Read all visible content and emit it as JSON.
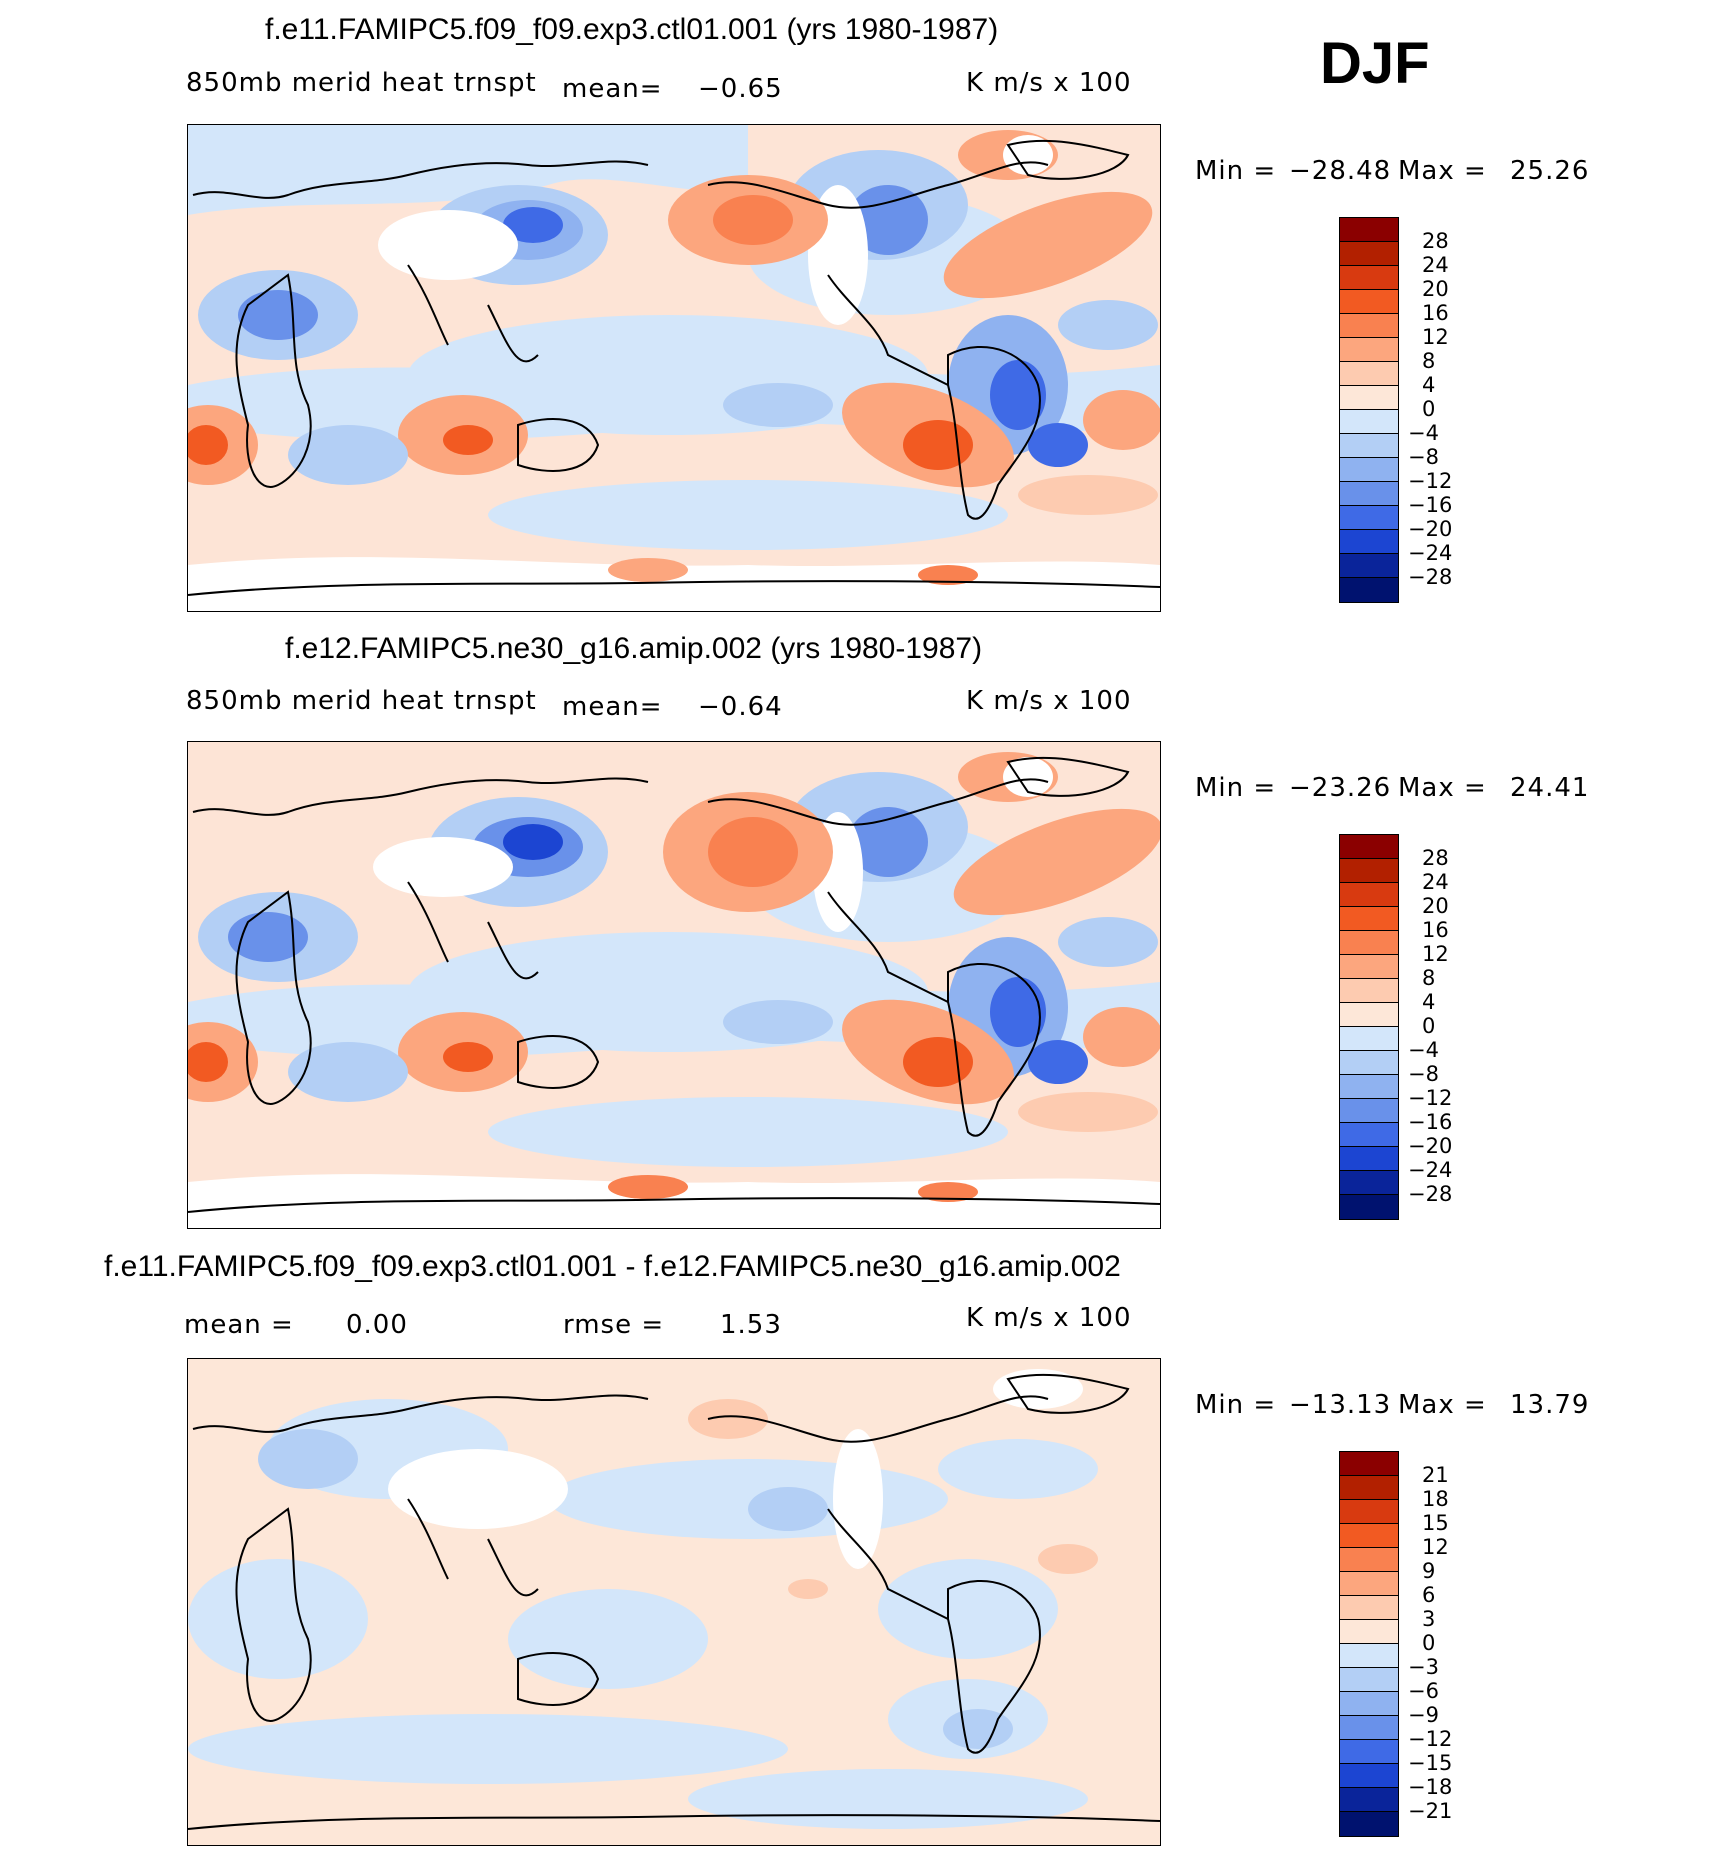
{
  "season": "DJF",
  "panels": [
    {
      "title": "f.e11.FAMIPC5.f09_f09.exp3.ctl01.001 (yrs 1980-1987)",
      "variable": "850mb merid heat trnspt",
      "mean_label": "mean=",
      "mean_value": "-0.65",
      "units": "K m/s x 100",
      "min_label": "Min =",
      "min_value": "-28.48",
      "max_label": "Max =",
      "max_value": "25.26",
      "levels": [
        "28",
        "24",
        "20",
        "16",
        "12",
        "8",
        "4",
        "0",
        "-4",
        "-8",
        "-12",
        "-16",
        "-20",
        "-24",
        "-28"
      ]
    },
    {
      "title": "f.e12.FAMIPC5.ne30_g16.amip.002 (yrs 1980-1987)",
      "variable": "850mb merid heat trnspt",
      "mean_label": "mean=",
      "mean_value": "-0.64",
      "units": "K m/s x 100",
      "min_label": "Min =",
      "min_value": "-23.26",
      "max_label": "Max =",
      "max_value": "24.41",
      "levels": [
        "28",
        "24",
        "20",
        "16",
        "12",
        "8",
        "4",
        "0",
        "-4",
        "-8",
        "-12",
        "-16",
        "-20",
        "-24",
        "-28"
      ]
    },
    {
      "title": "f.e11.FAMIPC5.f09_f09.exp3.ctl01.001 - f.e12.FAMIPC5.ne30_g16.amip.002",
      "mean_label": "mean =",
      "mean_value": "0.00",
      "rmse_label": "rmse =",
      "rmse_value": "1.53",
      "units": "K m/s x 100",
      "min_label": "Min =",
      "min_value": "-13.13",
      "max_label": "Max =",
      "max_value": "13.79",
      "levels": [
        "21",
        "18",
        "15",
        "12",
        "9",
        "6",
        "3",
        "0",
        "-3",
        "-6",
        "-9",
        "-12",
        "-15",
        "-18",
        "-21"
      ]
    }
  ],
  "colorscale": [
    "#8b0000",
    "#b22000",
    "#d83a10",
    "#f25a22",
    "#f98150",
    "#fca67e",
    "#fdcbb0",
    "#fde7d8",
    "#d3e6fa",
    "#b3cff5",
    "#8fb2f0",
    "#6991ea",
    "#3f6ae6",
    "#1c45d2",
    "#0a249a",
    "#00126f"
  ]
}
